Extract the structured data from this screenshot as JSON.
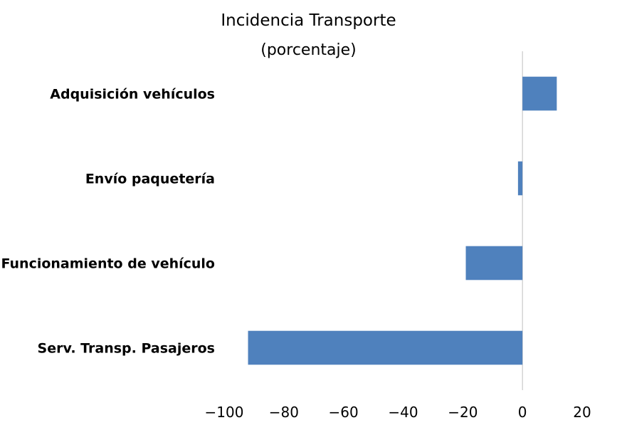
{
  "chart_data": {
    "type": "bar",
    "orientation": "horizontal",
    "title": "Incidencia Transporte",
    "subtitle": "(porcentaje)",
    "categories": [
      "Adquisición vehículos",
      "Envío paquetería",
      "Funcionamiento de vehículo",
      "Serv. Transp. Pasajeros"
    ],
    "values": [
      11.5,
      -1.5,
      -19,
      -92
    ],
    "xlim": [
      -100,
      20
    ],
    "xticks": [
      -100,
      -80,
      -60,
      -40,
      -20,
      0,
      20
    ],
    "xtick_labels": [
      "−100",
      "−80",
      "−60",
      "−40",
      "−20",
      "0",
      "20"
    ],
    "grid": false,
    "legend": "none",
    "bar_color": "#4f81bd",
    "axis_color": "#bfbfbf"
  }
}
